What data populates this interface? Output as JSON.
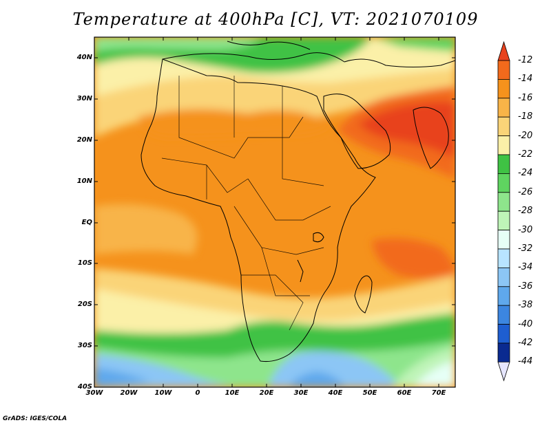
{
  "title": "Temperature at 400hPa [C], VT: 2021070109",
  "credit": "GrADS: IGES/COLA",
  "lat_labels": [
    "40N",
    "30N",
    "20N",
    "10N",
    "EQ",
    "10S",
    "20S",
    "30S",
    "40S"
  ],
  "lon_labels": [
    "30W",
    "20W",
    "10W",
    "0",
    "10E",
    "20E",
    "30E",
    "40E",
    "50E",
    "60E",
    "70E"
  ],
  "colorbar": {
    "labels": [
      "-12",
      "-14",
      "-16",
      "-18",
      "-20",
      "-22",
      "-24",
      "-26",
      "-28",
      "-30",
      "-32",
      "-34",
      "-36",
      "-38",
      "-40",
      "-42",
      "-44"
    ],
    "colors": [
      "#e8421e",
      "#f26a1c",
      "#f5921c",
      "#f8b448",
      "#fad478",
      "#fbf0a8",
      "#3fc244",
      "#5fd460",
      "#8ee58c",
      "#bff4b8",
      "#e6fff6",
      "#b8e4ff",
      "#8cc6f5",
      "#5fa8ec",
      "#3c86e0",
      "#1e5ed0",
      "#0a2a90"
    ],
    "top_color": "#e8421e",
    "bottom_color": "#e6e6ff"
  },
  "map": {
    "field": "Temperature at 400hPa",
    "units": "C",
    "lon_range": [
      -30,
      75
    ],
    "lat_range": [
      -40,
      45
    ],
    "dominant_colors": {
      "warmest_arabia_india": "#e8421e",
      "tropics": "#f5921c",
      "subtropics": "#fad478",
      "mid_lat_green": "#3fc244",
      "southern_blue": "#8cc6f5"
    }
  }
}
